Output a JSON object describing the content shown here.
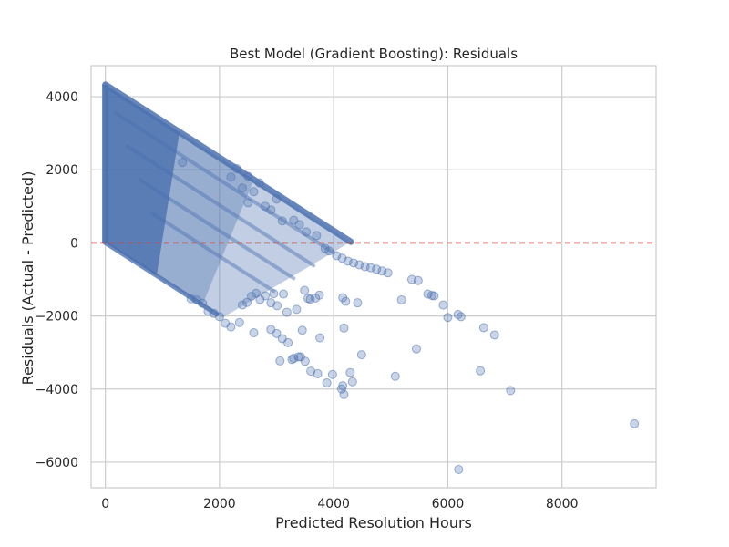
{
  "chart_data": {
    "type": "scatter",
    "title": "Best Model (Gradient Boosting): Residuals",
    "xlabel": "Predicted Resolution Hours",
    "ylabel": "Residuals (Actual - Predicted)",
    "xlim": [
      -250,
      9650
    ],
    "ylim": [
      -6700,
      4850
    ],
    "xticks": [
      0,
      2000,
      4000,
      6000,
      8000
    ],
    "yticks": [
      -6000,
      -4000,
      -2000,
      0,
      2000,
      4000
    ],
    "grid": true,
    "reference_line": {
      "y": 0,
      "style": "dashed",
      "color": "#c44e52"
    },
    "point_color": "#4c72b0",
    "point_opacity": 0.3,
    "dense_band": {
      "description": "residual = actual - predicted; dense cloud bounded above by residual = 4330 - predicted and below by residual = -predicted",
      "upper_intercept": 4330,
      "x_max": 4300
    },
    "x": [
      5190,
      5370,
      5480,
      5650,
      5720,
      5760,
      5920,
      6000,
      6180,
      6230,
      6630,
      6820,
      4180,
      3760,
      3450,
      5450,
      4490,
      5080,
      4290,
      3980,
      3880,
      3720,
      4140,
      4160,
      4180,
      4330,
      3380,
      3270,
      3060,
      6570,
      7100,
      9270,
      6190,
      4420,
      4210,
      4160,
      3590,
      3350,
      3180,
      3010,
      2900,
      3750,
      3680,
      3550,
      3490,
      3120,
      2950,
      2800,
      2710,
      2640,
      2560,
      2480,
      2400,
      3600,
      3500,
      3420,
      3300,
      3200,
      3100,
      3000,
      2900,
      2600,
      2350,
      2200,
      2100,
      2000,
      1900,
      1800,
      1700,
      1600,
      1500,
      2700,
      2500,
      2300,
      1350,
      3400,
      3300,
      3520,
      3700,
      3850,
      3920,
      4050,
      4150,
      4250,
      4350,
      4450,
      4550,
      4650,
      4750,
      4850,
      4950,
      3000,
      2800,
      2600,
      2400,
      2200,
      2900,
      2500,
      3100
    ],
    "y": [
      -1560,
      -1000,
      -1030,
      -1400,
      -1440,
      -1450,
      -1700,
      -2040,
      -1960,
      -2020,
      -2320,
      -2520,
      -2330,
      -2600,
      -2390,
      -2900,
      -3060,
      -3650,
      -3550,
      -3600,
      -3830,
      -3580,
      -4000,
      -3910,
      -4150,
      -3800,
      -3120,
      -3190,
      -3230,
      -3500,
      -4040,
      -4950,
      -6200,
      -1640,
      -1600,
      -1500,
      -1540,
      -1820,
      -1900,
      -1720,
      -1640,
      -1430,
      -1510,
      -1520,
      -1300,
      -1400,
      -1390,
      -1450,
      -1550,
      -1380,
      -1460,
      -1630,
      -1700,
      -3510,
      -3240,
      -3120,
      -3160,
      -2730,
      -2620,
      -2480,
      -2370,
      -2460,
      -2180,
      -2300,
      -2200,
      -2020,
      -1930,
      -1870,
      -1650,
      -1560,
      -1530,
      1640,
      1820,
      2030,
      2200,
      500,
      620,
      300,
      200,
      -150,
      -220,
      -350,
      -420,
      -500,
      -550,
      -600,
      -650,
      -680,
      -720,
      -770,
      -820,
      1200,
      1000,
      1400,
      1500,
      1800,
      900,
      1100,
      600
    ]
  }
}
